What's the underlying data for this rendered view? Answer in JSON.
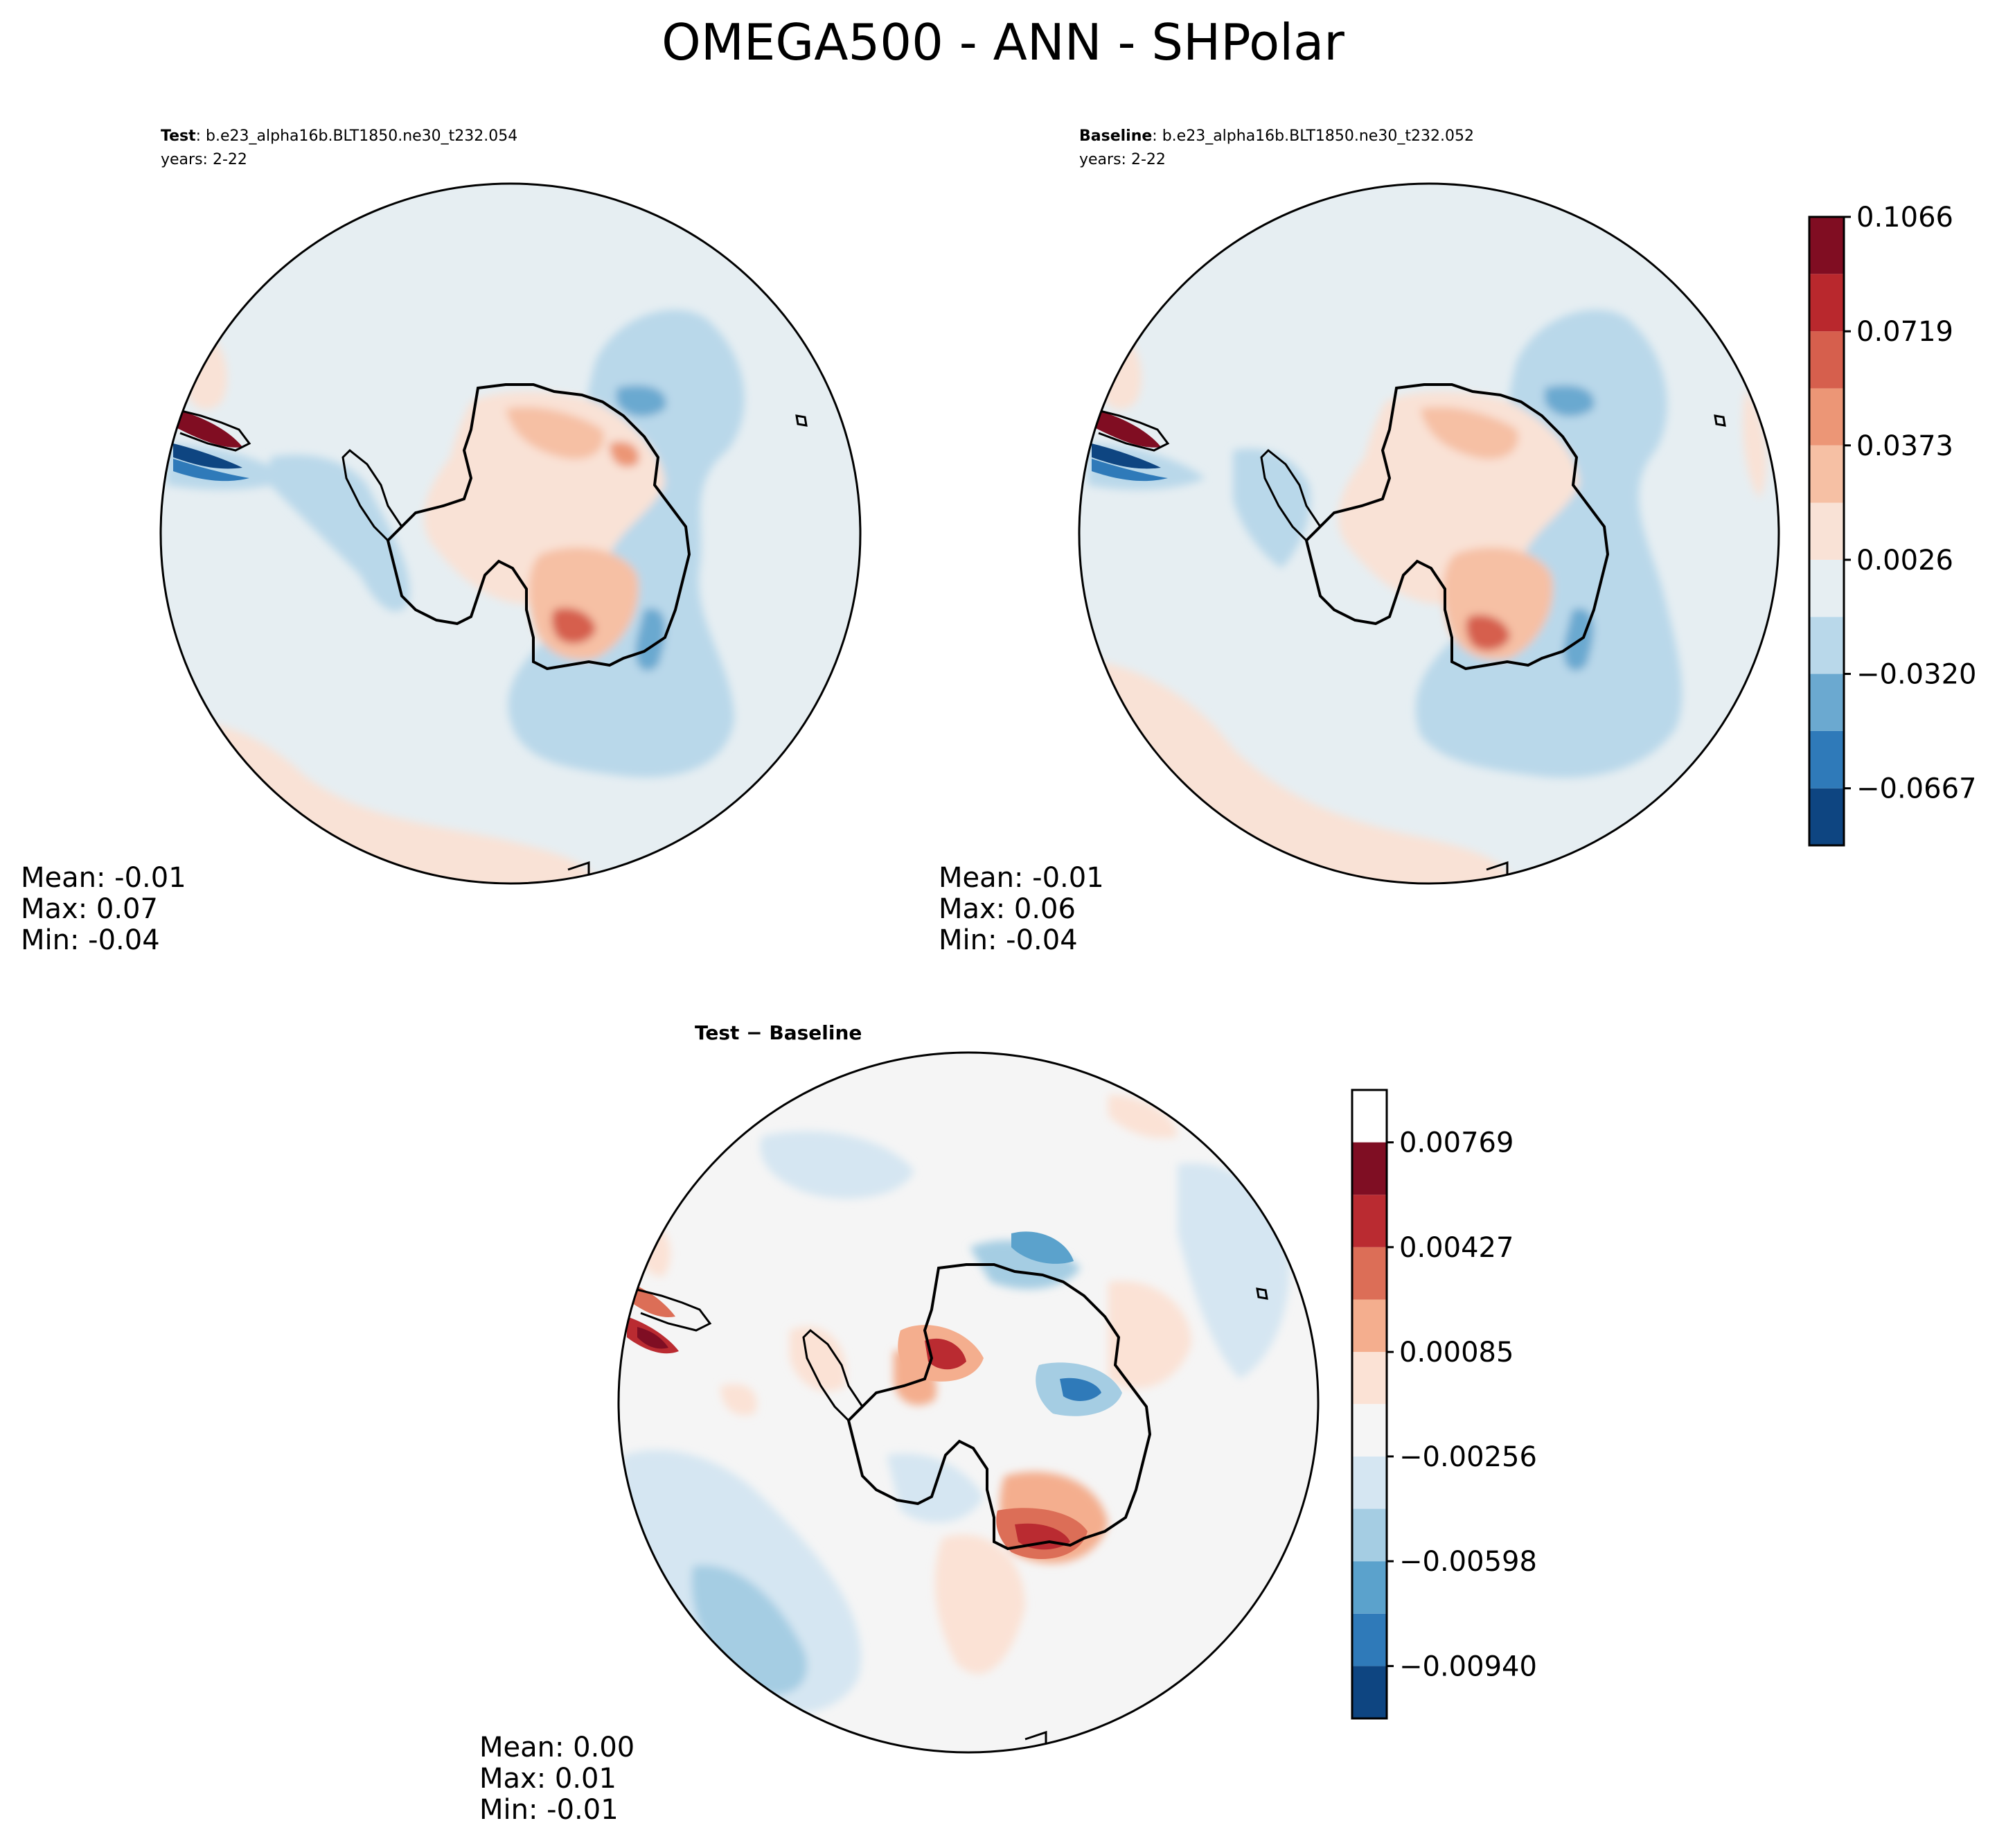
{
  "figure_title": "OMEGA500 - ANN - SHPolar",
  "panels": {
    "test": {
      "label": "Test",
      "case": ": b.e23_alpha16b.BLT1850.ne30_t232.054",
      "years": "years: 2-22",
      "mean": "Mean: -0.01",
      "max": "Max:  0.07",
      "min": "Min: -0.04"
    },
    "baseline": {
      "label": "Baseline",
      "case": ": b.e23_alpha16b.BLT1850.ne30_t232.052",
      "years": "years: 2-22",
      "mean": "Mean: -0.01",
      "max": "Max:  0.06",
      "min": "Min: -0.04"
    },
    "diff": {
      "title": "Test − Baseline",
      "mean": "Mean:  0.00",
      "max": "Max:  0.01",
      "min": "Min: -0.01"
    }
  },
  "colormap": [
    "#0e4581",
    "#2f7ab9",
    "#6ba9d0",
    "#b9d8ea",
    "#e6eef2",
    "#f9e2d6",
    "#f6c0a4",
    "#ec9676",
    "#d65f4d",
    "#b9282d",
    "#800d22"
  ],
  "diff_colormap": [
    "#0e4581",
    "#2f7ab9",
    "#5ba2cc",
    "#a5cde3",
    "#d5e6f2",
    "#f5f5f5",
    "#fbe2d5",
    "#f4ae8e",
    "#dc6e57",
    "#ba2b31",
    "#7f0e23"
  ],
  "chart_data": [
    {
      "type": "heatmap",
      "title": "Test : b.e23_alpha16b.BLT1850.ne30_t232.054",
      "projection": "south-polar-stereographic",
      "levels": [
        -0.084,
        -0.0667,
        -0.0493,
        -0.032,
        -0.0147,
        0.0026,
        0.0199,
        0.0373,
        0.0546,
        0.0719,
        0.0893,
        0.1066
      ],
      "stats": {
        "mean": -0.01,
        "max": 0.07,
        "min": -0.04
      }
    },
    {
      "type": "heatmap",
      "title": "Baseline : b.e23_alpha16b.BLT1850.ne30_t232.052",
      "projection": "south-polar-stereographic",
      "levels": [
        -0.084,
        -0.0667,
        -0.0493,
        -0.032,
        -0.0147,
        0.0026,
        0.0199,
        0.0373,
        0.0546,
        0.0719,
        0.0893,
        0.1066
      ],
      "colorbar_ticks": [
        "0.1066",
        "0.0719",
        "0.0373",
        "0.0026",
        "−0.0320",
        "−0.0667"
      ],
      "stats": {
        "mean": -0.01,
        "max": 0.06,
        "min": -0.04
      }
    },
    {
      "type": "heatmap",
      "title": "Test − Baseline",
      "projection": "south-polar-stereographic",
      "levels": [
        -0.01111,
        -0.0094,
        -0.00769,
        -0.00598,
        -0.00427,
        -0.00256,
        -0.00085,
        0.00085,
        0.00256,
        0.00427,
        0.00598,
        0.00769,
        0.0094
      ],
      "colorbar_ticks": [
        "0.00769",
        "0.00427",
        "0.00085",
        "−0.00256",
        "−0.00598",
        "−0.00940"
      ],
      "stats": {
        "mean": 0.0,
        "max": 0.01,
        "min": -0.01
      }
    }
  ]
}
